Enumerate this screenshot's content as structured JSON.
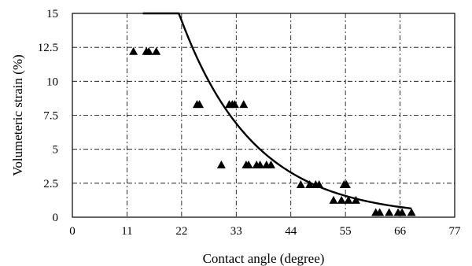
{
  "chart_data": {
    "type": "scatter",
    "title": "",
    "xlabel": "Contact angle (degree)",
    "ylabel": "Volumeteric strain (%)",
    "xlim": [
      0,
      77
    ],
    "ylim": [
      0,
      15
    ],
    "xticks": [
      0,
      11,
      22,
      33,
      44,
      55,
      66,
      77
    ],
    "yticks": [
      0,
      2.5,
      5,
      7.5,
      10,
      12.5,
      15
    ],
    "xtick_labels": [
      "0",
      "11",
      "22",
      "33",
      "44",
      "55",
      "66",
      "77"
    ],
    "ytick_labels": [
      "0",
      "2.5",
      "5",
      "7.5",
      "10",
      "12.5",
      "15"
    ],
    "grid": true,
    "legend": "none",
    "marker": "triangle",
    "series": [
      {
        "x": [
          12.3,
          14.9,
          15.4,
          16.9,
          25.1,
          25.6,
          30.0,
          31.6,
          32.2,
          32.7,
          34.5,
          35.0,
          35.5,
          37.1,
          37.8,
          39.1,
          40.0,
          46.0,
          47.8,
          49.0,
          49.7,
          52.6,
          54.2,
          54.7,
          55.2,
          55.6,
          57.1,
          61.1,
          61.9,
          63.8,
          65.6,
          66.4,
          68.3
        ],
        "y": [
          12.2,
          12.2,
          12.2,
          12.2,
          8.3,
          8.3,
          3.85,
          8.3,
          8.3,
          8.3,
          8.3,
          3.85,
          3.85,
          3.85,
          3.85,
          3.85,
          3.85,
          2.4,
          2.4,
          2.4,
          2.4,
          1.25,
          1.25,
          2.4,
          2.4,
          1.25,
          1.25,
          0.35,
          0.35,
          0.35,
          0.35,
          0.35,
          0.35
        ]
      }
    ],
    "fit_curve": {
      "type": "exponential",
      "a": 63.6,
      "b": -0.0673,
      "x_range": [
        14.2,
        68.3
      ]
    }
  }
}
